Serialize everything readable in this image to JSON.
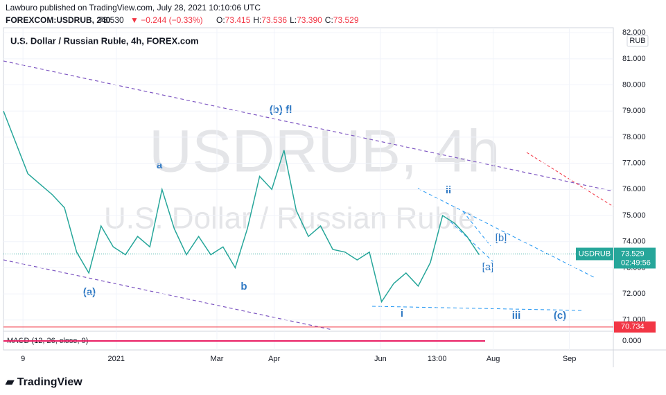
{
  "header": {
    "line1": "Lawburo published on TradingView.com, July 28, 2021 10:10:06 UTC",
    "symbol": "FOREXCOM:USDRUB, 240",
    "price": "73.530",
    "change": "▼ −0.244 (−0.33%)",
    "ohlc": [
      "O:",
      "73.415",
      "H:",
      "73.536",
      "L:",
      "73.390",
      "C:",
      "73.529"
    ]
  },
  "chart_data": {
    "type": "line",
    "title": "U.S. Dollar / Russian Ruble, 4h, FOREX.com",
    "watermark": [
      "USDRUB, 4h",
      "U.S. Dollar / Russian Ruble"
    ],
    "currency": "RUB",
    "color": "#26a69a",
    "x": [
      0,
      2,
      4,
      6,
      8,
      10,
      12,
      14,
      16,
      18,
      20,
      22,
      24,
      26,
      28,
      30,
      32,
      34,
      36,
      38,
      40,
      42,
      44,
      46,
      48,
      50,
      52,
      54,
      56,
      58,
      60,
      62,
      64,
      66,
      68,
      70,
      72,
      74,
      76,
      78
    ],
    "values": [
      79.0,
      77.8,
      76.6,
      76.2,
      75.8,
      75.3,
      73.6,
      72.8,
      74.6,
      73.8,
      73.5,
      74.2,
      73.8,
      76.0,
      74.5,
      73.5,
      74.2,
      73.5,
      73.8,
      73.0,
      74.5,
      76.5,
      76.0,
      77.5,
      75.2,
      74.2,
      74.6,
      73.7,
      73.6,
      73.3,
      73.6,
      71.7,
      72.4,
      72.8,
      72.3,
      73.2,
      75.0,
      74.7,
      74.2,
      73.5
    ],
    "xlim": [
      0,
      100
    ],
    "ylim": [
      70.57,
      82.19
    ],
    "xticks": [
      {
        "value": 3.2,
        "label": "9"
      },
      {
        "value": 18.5,
        "label": "2021"
      },
      {
        "value": 35,
        "label": "Mar"
      },
      {
        "value": 44.4,
        "label": "Apr"
      },
      {
        "value": 61.8,
        "label": "Jun"
      },
      {
        "value": 71.1,
        "label": "13:00"
      },
      {
        "value": 80.3,
        "label": "Aug"
      },
      {
        "value": 92.8,
        "label": "Sep"
      }
    ],
    "yticks": [
      {
        "value": 71,
        "label": "71.000"
      },
      {
        "value": 72,
        "label": "72.000"
      },
      {
        "value": 73,
        "label": "73.000"
      },
      {
        "value": 74,
        "label": "74.000"
      },
      {
        "value": 75,
        "label": "75.000"
      },
      {
        "value": 76,
        "label": "76.000"
      },
      {
        "value": 77,
        "label": "77.000"
      },
      {
        "value": 78,
        "label": "78.000"
      },
      {
        "value": 79,
        "label": "79.000"
      },
      {
        "value": 80,
        "label": "80.000"
      },
      {
        "value": 81,
        "label": "81.000"
      },
      {
        "value": 82,
        "label": "82.000"
      }
    ],
    "last_price": {
      "symbol": "USDRUB",
      "value": 73.529,
      "countdown": "02:49:56",
      "color": "#26a69a"
    },
    "alert_line": {
      "value": 70.734,
      "color": "#f23645"
    },
    "annotations": [
      "(a)",
      "a",
      "b",
      "(b) fl",
      "ii",
      "[b]",
      "[a]",
      "i",
      "iii",
      "(c)"
    ],
    "macd": {
      "label": "MACD (12, 26, close, 9)",
      "ylim": [
        -0.5,
        0.5
      ],
      "yticks": [
        {
          "value": 0,
          "label": "0.000"
        }
      ]
    }
  },
  "footer": {
    "brand": "TradingView"
  }
}
